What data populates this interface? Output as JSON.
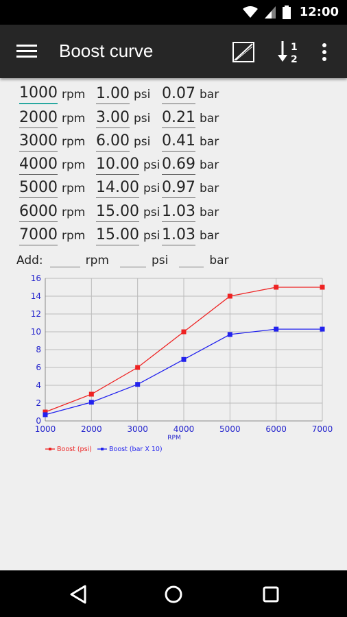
{
  "status_bar": {
    "time": "12:00"
  },
  "app_bar": {
    "title": "Boost curve"
  },
  "units": {
    "rpm": "rpm",
    "psi": "psi",
    "bar": "bar"
  },
  "rows": [
    {
      "rpm": "1000",
      "psi": "1.00",
      "bar": "0.07"
    },
    {
      "rpm": "2000",
      "psi": "3.00",
      "bar": "0.21"
    },
    {
      "rpm": "3000",
      "psi": "6.00",
      "bar": "0.41"
    },
    {
      "rpm": "4000",
      "psi": "10.00",
      "bar": "0.69"
    },
    {
      "rpm": "5000",
      "psi": "14.00",
      "bar": "0.97"
    },
    {
      "rpm": "6000",
      "psi": "15.00",
      "bar": "1.03"
    },
    {
      "rpm": "7000",
      "psi": "15.00",
      "bar": "1.03"
    }
  ],
  "add_row": {
    "label": "Add:",
    "rpm_value": "",
    "psi_value": "",
    "bar_value": ""
  },
  "chart_data": {
    "type": "line",
    "x": [
      1000,
      2000,
      3000,
      4000,
      5000,
      6000,
      7000
    ],
    "series": [
      {
        "name": "Boost (psi)",
        "color": "#ee2222",
        "values": [
          1.0,
          3.0,
          6.0,
          10.0,
          14.0,
          15.0,
          15.0
        ]
      },
      {
        "name": "Boost (bar X 10)",
        "color": "#2222ee",
        "values": [
          0.7,
          2.1,
          4.1,
          6.9,
          9.7,
          10.3,
          10.3
        ]
      }
    ],
    "xlabel": "RPM",
    "ylabel": "",
    "xlim": [
      1000,
      7000
    ],
    "ylim": [
      0,
      16
    ],
    "xticks": [
      1000,
      2000,
      3000,
      4000,
      5000,
      6000,
      7000
    ],
    "yticks": [
      0,
      2,
      4,
      6,
      8,
      10,
      12,
      14,
      16
    ],
    "grid": true,
    "legend": "bottom-left"
  }
}
